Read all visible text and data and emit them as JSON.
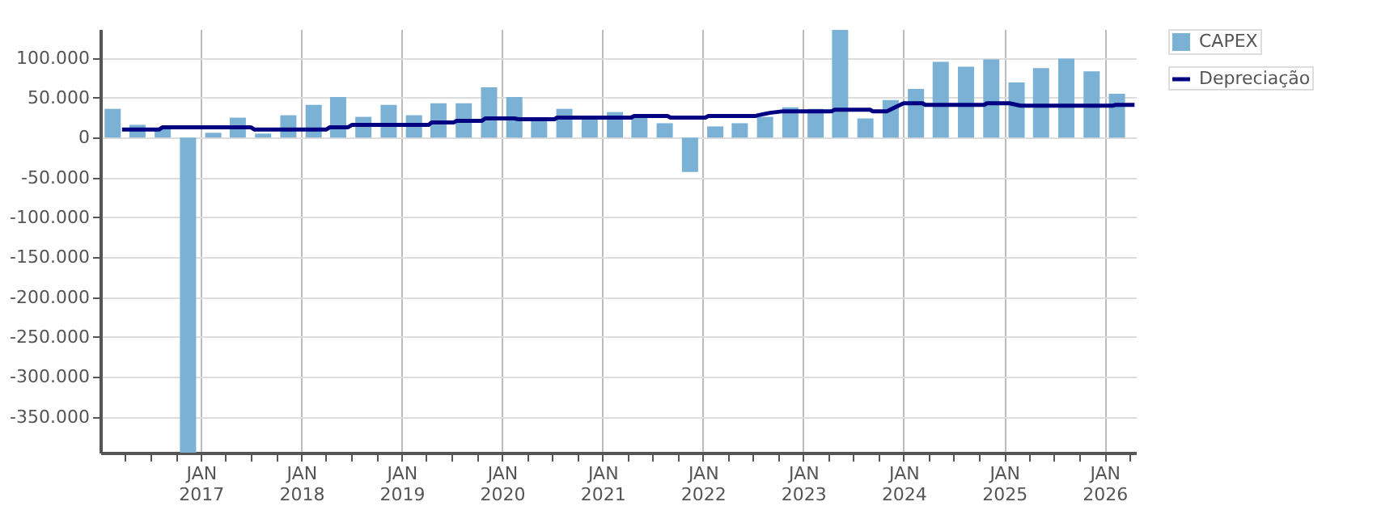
{
  "chart_data": {
    "type": "bar",
    "x": [
      "2016-02-15",
      "2016-05-15",
      "2016-08-15",
      "2016-11-15",
      "2017-02-15",
      "2017-05-15",
      "2017-08-15",
      "2017-11-15",
      "2018-02-15",
      "2018-05-15",
      "2018-08-15",
      "2018-11-15",
      "2019-02-15",
      "2019-05-15",
      "2019-08-15",
      "2019-11-15",
      "2020-02-15",
      "2020-05-15",
      "2020-08-15",
      "2020-11-15",
      "2021-02-15",
      "2021-05-15",
      "2021-08-15",
      "2021-11-15",
      "2022-02-15",
      "2022-05-15",
      "2022-08-15",
      "2022-11-15",
      "2023-02-15",
      "2023-05-15",
      "2023-08-15",
      "2023-11-15",
      "2024-02-15",
      "2024-05-15",
      "2024-08-15",
      "2024-11-15",
      "2025-02-15",
      "2025-05-15",
      "2025-08-15",
      "2025-11-15",
      "2026-02-15"
    ],
    "series": [
      {
        "name": "CAPEX",
        "color": "#7ab1d4",
        "values": [
          36000,
          16000,
          12000,
          -395000,
          6000,
          25000,
          5000,
          28000,
          41000,
          51000,
          26000,
          41000,
          28000,
          43000,
          43000,
          63000,
          51000,
          23000,
          36000,
          25000,
          32000,
          27000,
          18000,
          -43000,
          14000,
          18000,
          26000,
          38000,
          36000,
          135000,
          24000,
          47000,
          61000,
          95000,
          89000,
          98000,
          69000,
          87000,
          99000,
          83000,
          55000
        ]
      },
      {
        "name": "Depreciação",
        "type": "line",
        "color": "#000080",
        "x": [
          "2016-03-20",
          "2016-08-01",
          "2016-08-15",
          "2017-07-01",
          "2017-07-15",
          "2018-04-01",
          "2018-04-15",
          "2018-06-20",
          "2018-07-05",
          "2019-04-10",
          "2019-04-20",
          "2019-07-10",
          "2019-07-20",
          "2019-10-20",
          "2019-11-01",
          "2020-02-15",
          "2020-03-01",
          "2020-07-10",
          "2020-07-20",
          "2021-04-15",
          "2021-04-25",
          "2021-08-25",
          "2021-09-05",
          "2022-01-10",
          "2022-01-20",
          "2022-07-10",
          "2022-07-20",
          "2022-09-01",
          "2022-10-20",
          "2023-04-15",
          "2023-04-25",
          "2023-09-01",
          "2023-09-10",
          "2023-11-01",
          "2023-12-01",
          "2024-01-01",
          "2024-03-10",
          "2024-03-20",
          "2024-10-20",
          "2024-10-30",
          "2025-01-20",
          "2025-03-01",
          "2026-02-01",
          "2026-02-10",
          "2026-04-20"
        ],
        "values": [
          10000,
          10000,
          13000,
          13000,
          10000,
          10000,
          13000,
          13000,
          16000,
          16000,
          19000,
          19000,
          21000,
          21000,
          24000,
          24000,
          23000,
          23000,
          25000,
          25000,
          27000,
          27000,
          25000,
          25000,
          27000,
          27000,
          28000,
          31000,
          33000,
          33000,
          35000,
          35000,
          33000,
          33000,
          38000,
          43000,
          43000,
          41000,
          41000,
          43000,
          43000,
          40000,
          40000,
          41000,
          41000
        ]
      }
    ],
    "xlim": [
      "2016-01-01",
      "2026-04-25"
    ],
    "xticks": [
      {
        "value": "2016-04-01",
        "label": null
      },
      {
        "value": "2016-07-01",
        "label": null
      },
      {
        "value": "2016-10-01",
        "label": null
      },
      {
        "value": "2017-01-01",
        "label": "JAN 2017"
      },
      {
        "value": "2017-04-01",
        "label": null
      },
      {
        "value": "2017-07-01",
        "label": null
      },
      {
        "value": "2017-10-01",
        "label": null
      },
      {
        "value": "2018-01-01",
        "label": "JAN 2018"
      },
      {
        "value": "2018-04-01",
        "label": null
      },
      {
        "value": "2018-07-01",
        "label": null
      },
      {
        "value": "2018-10-01",
        "label": null
      },
      {
        "value": "2019-01-01",
        "label": "JAN 2019"
      },
      {
        "value": "2019-04-01",
        "label": null
      },
      {
        "value": "2019-07-01",
        "label": null
      },
      {
        "value": "2019-10-01",
        "label": null
      },
      {
        "value": "2020-01-01",
        "label": "JAN 2020"
      },
      {
        "value": "2020-04-01",
        "label": null
      },
      {
        "value": "2020-07-01",
        "label": null
      },
      {
        "value": "2020-10-01",
        "label": null
      },
      {
        "value": "2021-01-01",
        "label": "JAN 2021"
      },
      {
        "value": "2021-04-01",
        "label": null
      },
      {
        "value": "2021-07-01",
        "label": null
      },
      {
        "value": "2021-10-01",
        "label": null
      },
      {
        "value": "2022-01-01",
        "label": "JAN 2022"
      },
      {
        "value": "2022-04-01",
        "label": null
      },
      {
        "value": "2022-07-01",
        "label": null
      },
      {
        "value": "2022-10-01",
        "label": null
      },
      {
        "value": "2023-01-01",
        "label": "JAN 2023"
      },
      {
        "value": "2023-04-01",
        "label": null
      },
      {
        "value": "2023-07-01",
        "label": null
      },
      {
        "value": "2023-10-01",
        "label": null
      },
      {
        "value": "2024-01-01",
        "label": "JAN 2024"
      },
      {
        "value": "2024-04-01",
        "label": null
      },
      {
        "value": "2024-07-01",
        "label": null
      },
      {
        "value": "2024-10-01",
        "label": null
      },
      {
        "value": "2025-01-01",
        "label": "JAN 2025"
      },
      {
        "value": "2025-04-01",
        "label": null
      },
      {
        "value": "2025-07-01",
        "label": null
      },
      {
        "value": "2025-10-01",
        "label": null
      },
      {
        "value": "2026-01-01",
        "label": "JAN 2026"
      },
      {
        "value": "2026-04-01",
        "label": null
      }
    ],
    "ylim": [
      -395000,
      136000
    ],
    "yticks": [
      {
        "value": -350000,
        "label": "-350.000"
      },
      {
        "value": -300000,
        "label": "-300.000"
      },
      {
        "value": -250000,
        "label": "-250.000"
      },
      {
        "value": -200000,
        "label": "-200.000"
      },
      {
        "value": -150000,
        "label": "-150.000"
      },
      {
        "value": -100000,
        "label": "-100.000"
      },
      {
        "value": -50000,
        "label": "-50.000"
      },
      0,
      {
        "value": 50000,
        "label": "50.000"
      },
      {
        "value": 100000,
        "label": "100.000"
      }
    ],
    "grid": true,
    "legend": "top right"
  }
}
